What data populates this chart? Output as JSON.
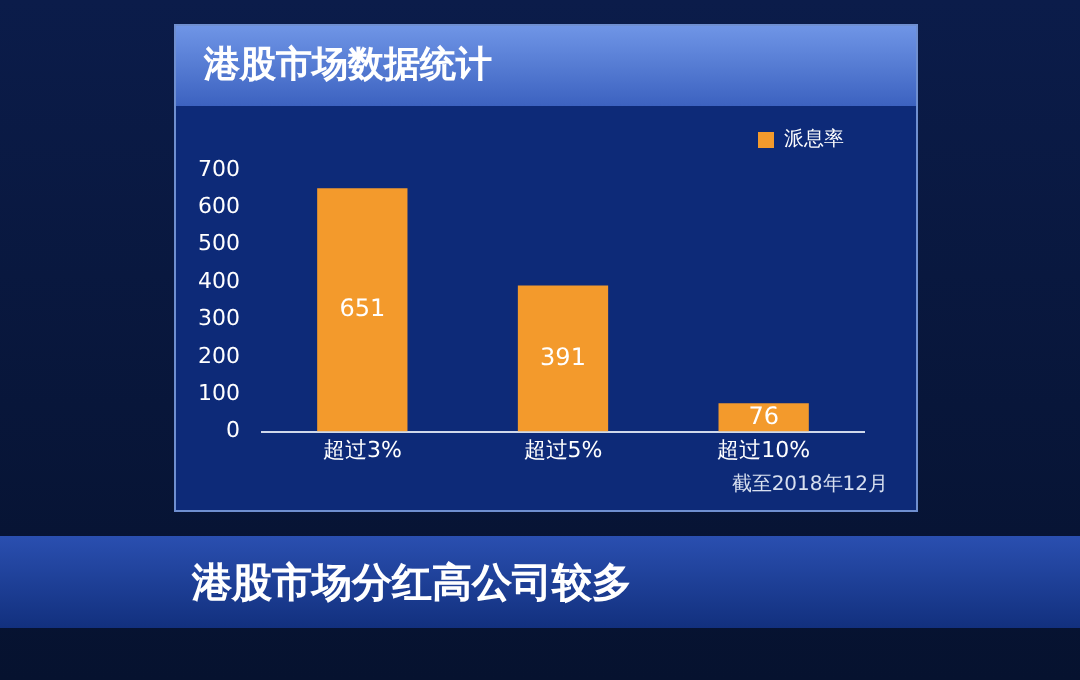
{
  "chart_data": {
    "type": "bar",
    "title": "港股市场数据统计",
    "categories": [
      "超过3%",
      "超过5%",
      "超过10%"
    ],
    "series": [
      {
        "name": "派息率",
        "color": "#f39a2c",
        "values": [
          651,
          391,
          76
        ]
      }
    ],
    "ylim": [
      0,
      700
    ],
    "yticks": [
      0,
      100,
      200,
      300,
      400,
      500,
      600,
      700
    ],
    "grid": false,
    "legend": "top right",
    "data_labels": true,
    "annotations": [
      "截至2018年12月",
      "港股市场分红高公司较多"
    ]
  }
}
